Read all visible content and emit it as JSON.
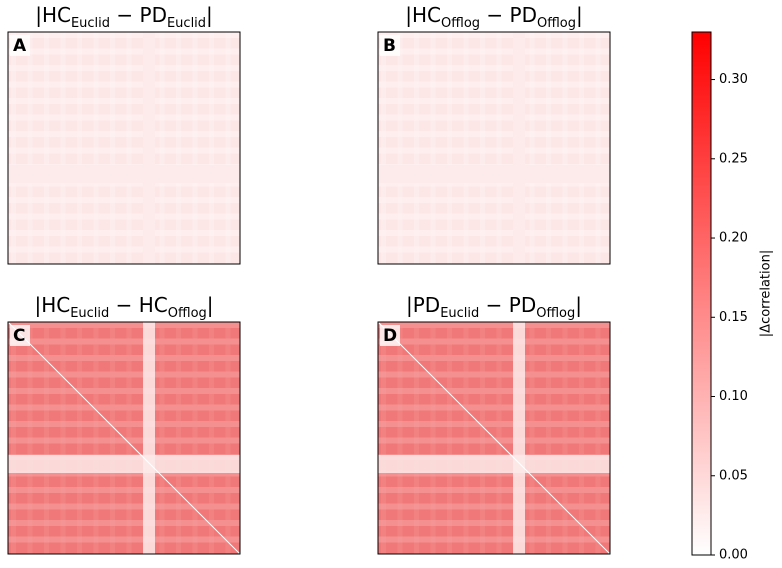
{
  "chart_data": [
    {
      "type": "heatmap",
      "label": "A",
      "title": [
        {
          "text": "|HC"
        },
        {
          "sub": "Euclid"
        },
        {
          "text": " − PD"
        },
        {
          "sub": "Euclid"
        },
        {
          "text": "|"
        }
      ]
    },
    {
      "type": "heatmap",
      "label": "B",
      "title": [
        {
          "text": "|HC"
        },
        {
          "sub": "Offlog"
        },
        {
          "text": " − PD"
        },
        {
          "sub": "Offlog"
        },
        {
          "text": "|"
        }
      ]
    },
    {
      "type": "heatmap",
      "label": "C",
      "title": [
        {
          "text": "|HC"
        },
        {
          "sub": "Euclid"
        },
        {
          "text": " − HC"
        },
        {
          "sub": "Offlog"
        },
        {
          "text": "|"
        }
      ]
    },
    {
      "type": "heatmap",
      "label": "D",
      "title": [
        {
          "text": "|PD"
        },
        {
          "sub": "Euclid"
        },
        {
          "text": " − PD"
        },
        {
          "sub": "Offlog"
        },
        {
          "text": "|"
        }
      ]
    },
    {
      "type": "colorbar",
      "ylabel": "|Δcorrelation|",
      "ylim": [
        0,
        0.33
      ],
      "colors": [
        "#ffffff",
        "#ff0000"
      ],
      "yticks": [
        {
          "value": 0,
          "label": "0.00"
        },
        {
          "value": 0.05,
          "label": "0.05"
        },
        {
          "value": 0.1,
          "label": "0.10"
        },
        {
          "value": 0.15,
          "label": "0.15"
        },
        {
          "value": 0.2,
          "label": "0.20"
        },
        {
          "value": 0.25,
          "label": "0.25"
        },
        {
          "value": 0.3,
          "label": "0.30"
        }
      ]
    }
  ]
}
